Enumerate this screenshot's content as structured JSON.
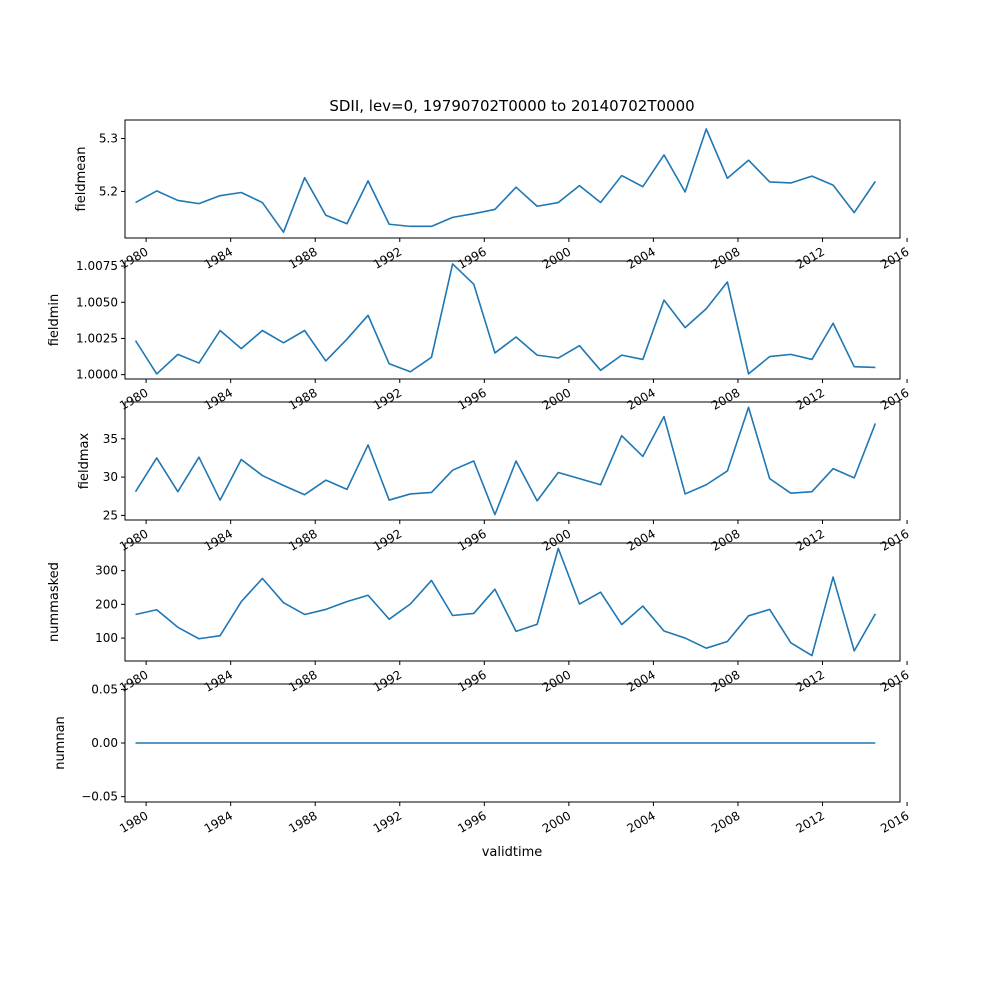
{
  "figure": {
    "title": "SDII, lev=0, 19790702T0000 to 20140702T0000",
    "xlabel": "validtime"
  },
  "colors": {
    "series": "#1f77b4",
    "axes": "#000000",
    "background": "#ffffff"
  },
  "chart_data": [
    {
      "type": "line",
      "title": "SDII, lev=0, 19790702T0000 to 20140702T0000",
      "xlabel": "",
      "ylabel": "fieldmean",
      "xlim": [
        "1979-01-01",
        "2015-09-01"
      ],
      "ylim": [
        5.112,
        5.335
      ],
      "yticks": [
        5.2,
        5.3
      ],
      "yticklabels": [
        "5.2",
        "5.3"
      ],
      "xticks": [
        "1980-01-01",
        "1984-01-01",
        "1988-01-01",
        "1992-01-01",
        "1996-01-01",
        "2000-01-01",
        "2004-01-01",
        "2008-01-01",
        "2012-01-01",
        "2016-01-01"
      ],
      "xticklabels": [
        "1980",
        "1984",
        "1988",
        "1992",
        "1996",
        "2000",
        "2004",
        "2008",
        "2012",
        "2016"
      ],
      "grid": false,
      "series": [
        {
          "x": [
            "1979-07-02",
            "1980-07-02",
            "1981-07-02",
            "1982-07-02",
            "1983-07-02",
            "1984-07-02",
            "1985-07-02",
            "1986-07-02",
            "1987-07-02",
            "1988-07-02",
            "1989-07-02",
            "1990-07-02",
            "1991-07-02",
            "1992-07-02",
            "1993-07-02",
            "1994-07-02",
            "1995-07-02",
            "1996-07-02",
            "1997-07-02",
            "1998-07-02",
            "1999-07-02",
            "2000-07-02",
            "2001-07-02",
            "2002-07-02",
            "2003-07-02",
            "2004-07-02",
            "2005-07-02",
            "2006-07-02",
            "2007-07-02",
            "2008-07-02",
            "2009-07-02",
            "2010-07-02",
            "2011-07-02",
            "2012-07-02",
            "2013-07-02",
            "2014-07-02"
          ],
          "y": [
            5.179,
            5.201,
            5.183,
            5.177,
            5.192,
            5.198,
            5.179,
            5.123,
            5.226,
            5.155,
            5.139,
            5.22,
            5.138,
            5.134,
            5.134,
            5.151,
            5.158,
            5.166,
            5.208,
            5.172,
            5.179,
            5.211,
            5.179,
            5.23,
            5.209,
            5.269,
            5.199,
            5.318,
            5.225,
            5.259,
            5.218,
            5.216,
            5.229,
            5.212,
            5.16,
            5.219
          ]
        }
      ]
    },
    {
      "type": "line",
      "xlabel": "",
      "ylabel": "fieldmin",
      "xlim": [
        "1979-01-01",
        "2015-09-01"
      ],
      "ylim": [
        0.9997,
        1.00785
      ],
      "yticks": [
        1.0,
        1.0025,
        1.005,
        1.0075
      ],
      "yticklabels": [
        "1.0000",
        "1.0025",
        "1.0050",
        "1.0075"
      ],
      "xticks": [
        "1980-01-01",
        "1984-01-01",
        "1988-01-01",
        "1992-01-01",
        "1996-01-01",
        "2000-01-01",
        "2004-01-01",
        "2008-01-01",
        "2012-01-01",
        "2016-01-01"
      ],
      "xticklabels": [
        "1980",
        "1984",
        "1988",
        "1992",
        "1996",
        "2000",
        "2004",
        "2008",
        "2012",
        "2016"
      ],
      "grid": false,
      "series": [
        {
          "x": [
            "1979-07-02",
            "1980-07-02",
            "1981-07-02",
            "1982-07-02",
            "1983-07-02",
            "1984-07-02",
            "1985-07-02",
            "1986-07-02",
            "1987-07-02",
            "1988-07-02",
            "1989-07-02",
            "1990-07-02",
            "1991-07-02",
            "1992-07-02",
            "1993-07-02",
            "1994-07-02",
            "1995-07-02",
            "1996-07-02",
            "1997-07-02",
            "1998-07-02",
            "1999-07-02",
            "2000-07-02",
            "2001-07-02",
            "2002-07-02",
            "2003-07-02",
            "2004-07-02",
            "2005-07-02",
            "2006-07-02",
            "2007-07-02",
            "2008-07-02",
            "2009-07-02",
            "2010-07-02",
            "2011-07-02",
            "2012-07-02",
            "2013-07-02",
            "2014-07-02"
          ],
          "y": [
            1.00235,
            1.00005,
            1.0014,
            1.0008,
            1.00305,
            1.0018,
            1.00305,
            1.0022,
            1.00305,
            1.00095,
            1.00245,
            1.0041,
            1.00075,
            1.0002,
            1.0012,
            1.00765,
            1.00625,
            1.0015,
            1.0026,
            1.00135,
            1.00115,
            1.002,
            1.0003,
            1.00135,
            1.00105,
            1.00515,
            1.00325,
            1.00455,
            1.0064,
            1.00005,
            1.00125,
            1.0014,
            1.00105,
            1.00355,
            1.00055,
            1.0005
          ]
        }
      ]
    },
    {
      "type": "line",
      "xlabel": "",
      "ylabel": "fieldmax",
      "xlim": [
        "1979-01-01",
        "2015-09-01"
      ],
      "ylim": [
        24.4,
        39.8
      ],
      "yticks": [
        25,
        30,
        35
      ],
      "yticklabels": [
        "25",
        "30",
        "35"
      ],
      "xticks": [
        "1980-01-01",
        "1984-01-01",
        "1988-01-01",
        "1992-01-01",
        "1996-01-01",
        "2000-01-01",
        "2004-01-01",
        "2008-01-01",
        "2012-01-01",
        "2016-01-01"
      ],
      "xticklabels": [
        "1980",
        "1984",
        "1988",
        "1992",
        "1996",
        "2000",
        "2004",
        "2008",
        "2012",
        "2016"
      ],
      "grid": false,
      "series": [
        {
          "x": [
            "1979-07-02",
            "1980-07-02",
            "1981-07-02",
            "1982-07-02",
            "1983-07-02",
            "1984-07-02",
            "1985-07-02",
            "1986-07-02",
            "1987-07-02",
            "1988-07-02",
            "1989-07-02",
            "1990-07-02",
            "1991-07-02",
            "1992-07-02",
            "1993-07-02",
            "1994-07-02",
            "1995-07-02",
            "1996-07-02",
            "1997-07-02",
            "1998-07-02",
            "1999-07-02",
            "2000-07-02",
            "2001-07-02",
            "2002-07-02",
            "2003-07-02",
            "2004-07-02",
            "2005-07-02",
            "2006-07-02",
            "2007-07-02",
            "2008-07-02",
            "2009-07-02",
            "2010-07-02",
            "2011-07-02",
            "2012-07-02",
            "2013-07-02",
            "2014-07-02"
          ],
          "y": [
            28.1,
            32.5,
            28.1,
            32.6,
            27.0,
            32.3,
            30.2,
            28.9,
            27.7,
            29.6,
            28.4,
            34.2,
            27.0,
            27.8,
            28.0,
            30.9,
            32.1,
            25.1,
            32.1,
            26.9,
            30.6,
            29.8,
            29.0,
            35.4,
            32.7,
            37.9,
            27.8,
            29.0,
            30.8,
            39.1,
            29.8,
            27.9,
            28.1,
            31.1,
            29.9,
            37.0
          ]
        }
      ]
    },
    {
      "type": "line",
      "xlabel": "",
      "ylabel": "nummasked",
      "xlim": [
        "1979-01-01",
        "2015-09-01"
      ],
      "ylim": [
        32,
        382
      ],
      "yticks": [
        100,
        200,
        300
      ],
      "yticklabels": [
        "100",
        "200",
        "300"
      ],
      "xticks": [
        "1980-01-01",
        "1984-01-01",
        "1988-01-01",
        "1992-01-01",
        "1996-01-01",
        "2000-01-01",
        "2004-01-01",
        "2008-01-01",
        "2012-01-01",
        "2016-01-01"
      ],
      "xticklabels": [
        "1980",
        "1984",
        "1988",
        "1992",
        "1996",
        "2000",
        "2004",
        "2008",
        "2012",
        "2016"
      ],
      "grid": false,
      "series": [
        {
          "x": [
            "1979-07-02",
            "1980-07-02",
            "1981-07-02",
            "1982-07-02",
            "1983-07-02",
            "1984-07-02",
            "1985-07-02",
            "1986-07-02",
            "1987-07-02",
            "1988-07-02",
            "1989-07-02",
            "1990-07-02",
            "1991-07-02",
            "1992-07-02",
            "1993-07-02",
            "1994-07-02",
            "1995-07-02",
            "1996-07-02",
            "1997-07-02",
            "1998-07-02",
            "1999-07-02",
            "2000-07-02",
            "2001-07-02",
            "2002-07-02",
            "2003-07-02",
            "2004-07-02",
            "2005-07-02",
            "2006-07-02",
            "2007-07-02",
            "2008-07-02",
            "2009-07-02",
            "2010-07-02",
            "2011-07-02",
            "2012-07-02",
            "2013-07-02",
            "2014-07-02"
          ],
          "y": [
            170,
            184,
            132,
            98,
            107,
            208,
            277,
            205,
            170,
            185,
            208,
            227,
            156,
            201,
            271,
            167,
            173,
            245,
            120,
            141,
            366,
            201,
            236,
            140,
            195,
            121,
            100,
            70,
            90,
            166,
            185,
            86,
            48,
            281,
            62,
            172
          ]
        }
      ]
    },
    {
      "type": "line",
      "xlabel": "validtime",
      "ylabel": "numnan",
      "xlim": [
        "1979-01-01",
        "2015-09-01"
      ],
      "ylim": [
        -0.055,
        0.055
      ],
      "yticks": [
        -0.05,
        0.0,
        0.05
      ],
      "yticklabels": [
        "−0.05",
        "0.00",
        "0.05"
      ],
      "xticks": [
        "1980-01-01",
        "1984-01-01",
        "1988-01-01",
        "1992-01-01",
        "1996-01-01",
        "2000-01-01",
        "2004-01-01",
        "2008-01-01",
        "2012-01-01",
        "2016-01-01"
      ],
      "xticklabels": [
        "1980",
        "1984",
        "1988",
        "1992",
        "1996",
        "2000",
        "2004",
        "2008",
        "2012",
        "2016"
      ],
      "grid": false,
      "series": [
        {
          "x": [
            "1979-07-02",
            "1980-07-02",
            "1981-07-02",
            "1982-07-02",
            "1983-07-02",
            "1984-07-02",
            "1985-07-02",
            "1986-07-02",
            "1987-07-02",
            "1988-07-02",
            "1989-07-02",
            "1990-07-02",
            "1991-07-02",
            "1992-07-02",
            "1993-07-02",
            "1994-07-02",
            "1995-07-02",
            "1996-07-02",
            "1997-07-02",
            "1998-07-02",
            "1999-07-02",
            "2000-07-02",
            "2001-07-02",
            "2002-07-02",
            "2003-07-02",
            "2004-07-02",
            "2005-07-02",
            "2006-07-02",
            "2007-07-02",
            "2008-07-02",
            "2009-07-02",
            "2010-07-02",
            "2011-07-02",
            "2012-07-02",
            "2013-07-02",
            "2014-07-02"
          ],
          "y": [
            0,
            0,
            0,
            0,
            0,
            0,
            0,
            0,
            0,
            0,
            0,
            0,
            0,
            0,
            0,
            0,
            0,
            0,
            0,
            0,
            0,
            0,
            0,
            0,
            0,
            0,
            0,
            0,
            0,
            0,
            0,
            0,
            0,
            0,
            0,
            0
          ]
        }
      ]
    }
  ]
}
